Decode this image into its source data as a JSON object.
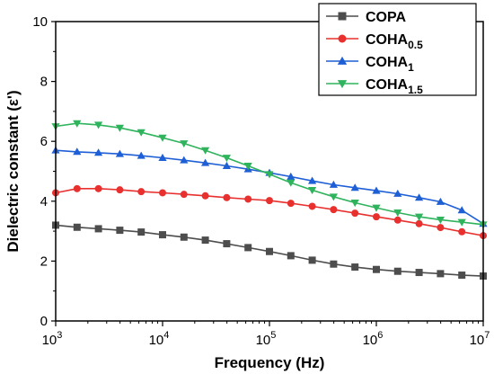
{
  "chart_data": {
    "type": "line",
    "title": "",
    "xlabel": "Frequency (Hz)",
    "ylabel": "Dielectric constant (ε')",
    "x_scale": "log",
    "xlim": [
      1000,
      10000000
    ],
    "ylim": [
      0,
      10
    ],
    "y_ticks": [
      "0",
      "2",
      "4",
      "6",
      "8",
      "10"
    ],
    "x_ticks": [
      {
        "base": "10",
        "exp": "3"
      },
      {
        "base": "10",
        "exp": "4"
      },
      {
        "base": "10",
        "exp": "5"
      },
      {
        "base": "10",
        "exp": "6"
      },
      {
        "base": "10",
        "exp": "7"
      }
    ],
    "legend_position": "top-right",
    "x": [
      1000,
      1585,
      2512,
      3981,
      6310,
      10000,
      15849,
      25119,
      39811,
      63096,
      100000,
      158489,
      251189,
      398107,
      630957,
      1000000,
      1584893,
      2511886,
      3981072,
      6309573,
      10000000
    ],
    "series": [
      {
        "legend_name": "COPA",
        "legend_sub": "",
        "color": "#4d4d4d",
        "marker": "square",
        "values": [
          3.2,
          3.13,
          3.08,
          3.03,
          2.97,
          2.88,
          2.8,
          2.7,
          2.58,
          2.45,
          2.32,
          2.18,
          2.03,
          1.9,
          1.8,
          1.72,
          1.66,
          1.62,
          1.58,
          1.53,
          1.5
        ]
      },
      {
        "legend_name": "COHA",
        "legend_sub": "0.5",
        "color": "#e8312f",
        "marker": "circle",
        "values": [
          4.28,
          4.42,
          4.42,
          4.38,
          4.32,
          4.28,
          4.23,
          4.18,
          4.12,
          4.07,
          4.02,
          3.93,
          3.83,
          3.72,
          3.6,
          3.48,
          3.37,
          3.25,
          3.12,
          2.98,
          2.85
        ]
      },
      {
        "legend_name": "COHA",
        "legend_sub": "1",
        "color": "#1f5fd6",
        "marker": "triangle-up",
        "values": [
          5.7,
          5.65,
          5.62,
          5.58,
          5.52,
          5.45,
          5.37,
          5.28,
          5.18,
          5.07,
          4.95,
          4.82,
          4.68,
          4.55,
          4.45,
          4.35,
          4.25,
          4.12,
          3.98,
          3.7,
          3.25
        ]
      },
      {
        "legend_name": "COHA",
        "legend_sub": "1.5",
        "color": "#2fb35c",
        "marker": "triangle-down",
        "values": [
          6.5,
          6.6,
          6.55,
          6.45,
          6.3,
          6.12,
          5.93,
          5.7,
          5.45,
          5.18,
          4.9,
          4.62,
          4.37,
          4.15,
          3.95,
          3.78,
          3.62,
          3.48,
          3.38,
          3.3,
          3.22
        ]
      }
    ]
  }
}
